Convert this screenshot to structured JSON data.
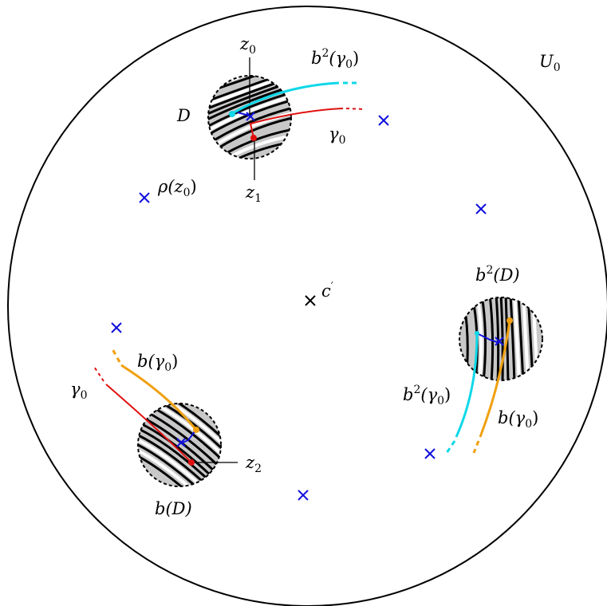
{
  "diagram": {
    "colors": {
      "boundary": "#000000",
      "stripe_gray": "#c8c8c8",
      "cross": "#1010dd",
      "gamma_red": "#e01010",
      "b_gamma_orange": "#f0a010",
      "b2_gamma_cyan": "#10d8e8"
    },
    "labels": {
      "U0": {
        "main": "U",
        "sub": "0"
      },
      "z0": {
        "main": "z",
        "sub": "0"
      },
      "z1": {
        "main": "z",
        "sub": "1"
      },
      "z2": {
        "main": "z",
        "sub": "2"
      },
      "D": {
        "main": "D"
      },
      "b2gamma_top": {
        "pre": "b",
        "sup": "2",
        "open": "(γ",
        "sub": "0",
        "close": ")"
      },
      "gamma_top": {
        "main": "γ",
        "sub": "0"
      },
      "rho": {
        "pre": "ρ(z",
        "sub": "0",
        "close": ")"
      },
      "cprime": {
        "main": "c",
        "prime": "′"
      },
      "b2D": {
        "pre": "b",
        "sup": "2",
        "close": "(D)"
      },
      "bgamma_left": {
        "pre": "b(γ",
        "sub": "0",
        "close": ")"
      },
      "gamma_left": {
        "main": "γ",
        "sub": "0"
      },
      "b2gamma_right": {
        "pre": "b",
        "sup": "2",
        "open": "(γ",
        "sub": "0",
        "close": ")"
      },
      "bgamma_right": {
        "pre": "b(γ",
        "sub": "0",
        "close": ")"
      },
      "bD": {
        "pre": "b(D)"
      }
    }
  }
}
